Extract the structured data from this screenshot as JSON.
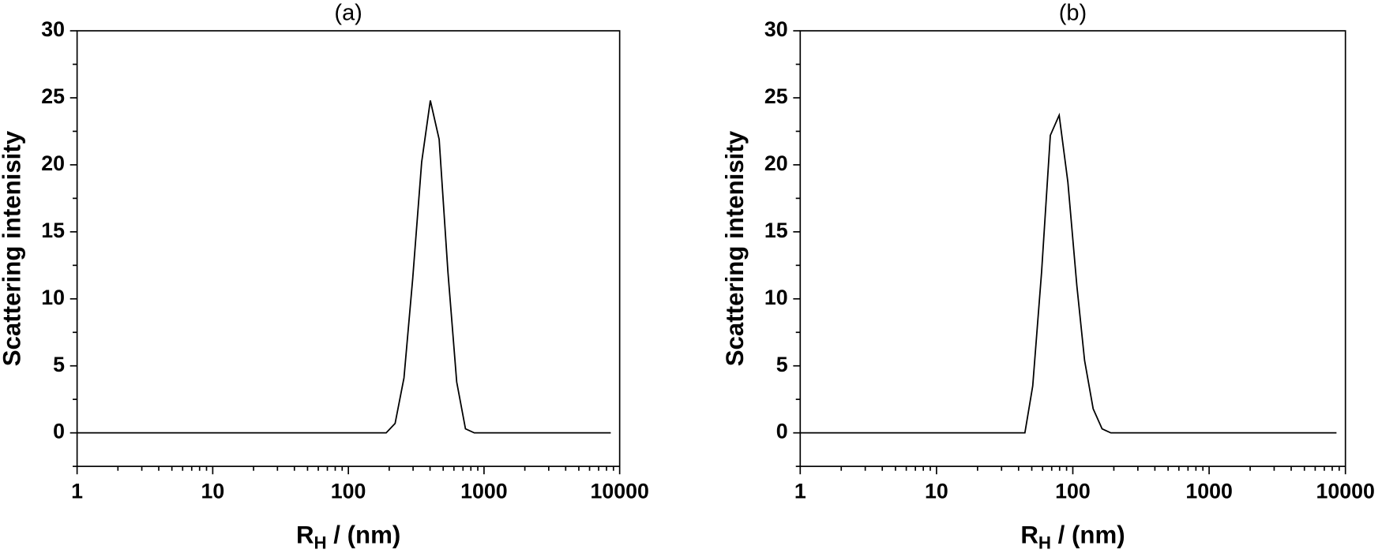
{
  "chart_data": [
    {
      "type": "line",
      "title": "(a)",
      "ylabel": "Scattering intenisity",
      "xlabel": {
        "main": "R",
        "sub": "H",
        "rest": " / (nm)"
      },
      "xscale": "log",
      "xlim": [
        1,
        10000
      ],
      "xticks": [
        1,
        10,
        100,
        1000,
        10000
      ],
      "ylim": [
        -2.5,
        30
      ],
      "yticks": [
        0,
        5,
        10,
        15,
        20,
        25,
        30
      ],
      "color": "#000000",
      "x": [
        1,
        190,
        221,
        257,
        298,
        347,
        402,
        467,
        542,
        629,
        730,
        848,
        8600
      ],
      "values": [
        0,
        0,
        0.7,
        4.1,
        11.5,
        20.2,
        24.8,
        21.9,
        12,
        3.8,
        0.3,
        0,
        0
      ]
    },
    {
      "type": "line",
      "title": "(b)",
      "ylabel": "Scattering intenisity",
      "xlabel": {
        "main": "R",
        "sub": "H",
        "rest": " / (nm)"
      },
      "xscale": "log",
      "xlim": [
        1,
        10000
      ],
      "xticks": [
        1,
        10,
        100,
        1000,
        10000
      ],
      "ylim": [
        -2.5,
        30
      ],
      "yticks": [
        0,
        5,
        10,
        15,
        20,
        25,
        30
      ],
      "color": "#000000",
      "x": [
        1,
        44.5,
        50.8,
        59,
        68.4,
        79.4,
        92,
        107,
        122,
        141,
        164,
        190,
        8600
      ],
      "values": [
        0,
        0,
        3.5,
        12,
        22.2,
        23.7,
        18.7,
        11,
        5.4,
        1.8,
        0.3,
        0,
        0
      ]
    }
  ]
}
